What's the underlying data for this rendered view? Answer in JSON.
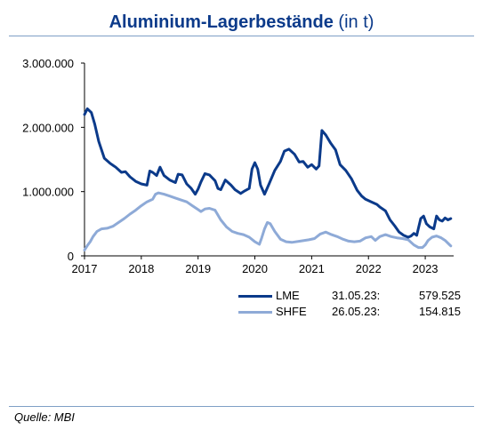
{
  "chart_data": {
    "type": "line",
    "title": "Aluminium-Lagerbestände",
    "title_unit": "(in t)",
    "xlim": [
      2017.0,
      2023.5
    ],
    "ylim": [
      0,
      3000000
    ],
    "yticks": [
      0,
      1000000,
      2000000,
      3000000
    ],
    "ytick_labels": [
      "0",
      "1.000.000",
      "2.000.000",
      "3.000.000"
    ],
    "xticks": [
      2017,
      2018,
      2019,
      2020,
      2021,
      2022,
      2023
    ],
    "xtick_labels": [
      "2017",
      "2018",
      "2019",
      "2020",
      "2021",
      "2022",
      "2023"
    ],
    "grid": false,
    "legend_position": "bottom-right",
    "series": [
      {
        "name": "LME",
        "color": "#0b3a8a",
        "last_date": "31.05.23:",
        "last_value": "579.525",
        "points": [
          [
            2017.0,
            2200000
          ],
          [
            2017.05,
            2290000
          ],
          [
            2017.12,
            2230000
          ],
          [
            2017.18,
            2050000
          ],
          [
            2017.25,
            1780000
          ],
          [
            2017.35,
            1520000
          ],
          [
            2017.45,
            1440000
          ],
          [
            2017.55,
            1380000
          ],
          [
            2017.65,
            1300000
          ],
          [
            2017.72,
            1310000
          ],
          [
            2017.8,
            1230000
          ],
          [
            2017.9,
            1160000
          ],
          [
            2018.0,
            1120000
          ],
          [
            2018.1,
            1100000
          ],
          [
            2018.15,
            1320000
          ],
          [
            2018.2,
            1300000
          ],
          [
            2018.27,
            1250000
          ],
          [
            2018.33,
            1380000
          ],
          [
            2018.4,
            1250000
          ],
          [
            2018.5,
            1180000
          ],
          [
            2018.6,
            1140000
          ],
          [
            2018.65,
            1270000
          ],
          [
            2018.72,
            1260000
          ],
          [
            2018.8,
            1120000
          ],
          [
            2018.88,
            1050000
          ],
          [
            2018.95,
            960000
          ],
          [
            2019.0,
            1040000
          ],
          [
            2019.05,
            1150000
          ],
          [
            2019.12,
            1280000
          ],
          [
            2019.2,
            1260000
          ],
          [
            2019.3,
            1170000
          ],
          [
            2019.35,
            1050000
          ],
          [
            2019.4,
            1030000
          ],
          [
            2019.48,
            1180000
          ],
          [
            2019.58,
            1100000
          ],
          [
            2019.65,
            1030000
          ],
          [
            2019.75,
            970000
          ],
          [
            2019.82,
            1010000
          ],
          [
            2019.9,
            1050000
          ],
          [
            2019.95,
            1350000
          ],
          [
            2020.0,
            1450000
          ],
          [
            2020.05,
            1350000
          ],
          [
            2020.1,
            1100000
          ],
          [
            2020.17,
            960000
          ],
          [
            2020.25,
            1120000
          ],
          [
            2020.35,
            1330000
          ],
          [
            2020.45,
            1470000
          ],
          [
            2020.52,
            1630000
          ],
          [
            2020.6,
            1660000
          ],
          [
            2020.7,
            1580000
          ],
          [
            2020.78,
            1460000
          ],
          [
            2020.85,
            1470000
          ],
          [
            2020.93,
            1380000
          ],
          [
            2021.0,
            1420000
          ],
          [
            2021.08,
            1350000
          ],
          [
            2021.13,
            1400000
          ],
          [
            2021.18,
            1950000
          ],
          [
            2021.25,
            1880000
          ],
          [
            2021.33,
            1760000
          ],
          [
            2021.42,
            1650000
          ],
          [
            2021.5,
            1420000
          ],
          [
            2021.6,
            1330000
          ],
          [
            2021.7,
            1200000
          ],
          [
            2021.8,
            1020000
          ],
          [
            2021.88,
            930000
          ],
          [
            2021.95,
            880000
          ],
          [
            2022.05,
            840000
          ],
          [
            2022.15,
            800000
          ],
          [
            2022.2,
            760000
          ],
          [
            2022.3,
            700000
          ],
          [
            2022.38,
            560000
          ],
          [
            2022.46,
            470000
          ],
          [
            2022.54,
            370000
          ],
          [
            2022.62,
            320000
          ],
          [
            2022.7,
            290000
          ],
          [
            2022.75,
            310000
          ],
          [
            2022.8,
            350000
          ],
          [
            2022.85,
            320000
          ],
          [
            2022.92,
            580000
          ],
          [
            2022.97,
            620000
          ],
          [
            2023.02,
            500000
          ],
          [
            2023.08,
            450000
          ],
          [
            2023.15,
            420000
          ],
          [
            2023.2,
            620000
          ],
          [
            2023.25,
            560000
          ],
          [
            2023.3,
            540000
          ],
          [
            2023.35,
            590000
          ],
          [
            2023.4,
            560000
          ],
          [
            2023.45,
            580000
          ]
        ]
      },
      {
        "name": "SHFE",
        "color": "#8eaad7",
        "last_date": "26.05.23:",
        "last_value": "154.815",
        "points": [
          [
            2017.0,
            90000
          ],
          [
            2017.05,
            160000
          ],
          [
            2017.1,
            220000
          ],
          [
            2017.15,
            300000
          ],
          [
            2017.22,
            380000
          ],
          [
            2017.3,
            420000
          ],
          [
            2017.4,
            430000
          ],
          [
            2017.5,
            460000
          ],
          [
            2017.6,
            520000
          ],
          [
            2017.7,
            580000
          ],
          [
            2017.8,
            650000
          ],
          [
            2017.9,
            710000
          ],
          [
            2018.0,
            780000
          ],
          [
            2018.1,
            840000
          ],
          [
            2018.2,
            880000
          ],
          [
            2018.25,
            960000
          ],
          [
            2018.3,
            980000
          ],
          [
            2018.4,
            960000
          ],
          [
            2018.5,
            930000
          ],
          [
            2018.6,
            900000
          ],
          [
            2018.7,
            870000
          ],
          [
            2018.8,
            840000
          ],
          [
            2018.9,
            780000
          ],
          [
            2019.0,
            720000
          ],
          [
            2019.05,
            690000
          ],
          [
            2019.12,
            730000
          ],
          [
            2019.2,
            740000
          ],
          [
            2019.3,
            710000
          ],
          [
            2019.4,
            560000
          ],
          [
            2019.5,
            450000
          ],
          [
            2019.6,
            380000
          ],
          [
            2019.7,
            350000
          ],
          [
            2019.8,
            330000
          ],
          [
            2019.9,
            290000
          ],
          [
            2020.0,
            220000
          ],
          [
            2020.08,
            180000
          ],
          [
            2020.12,
            280000
          ],
          [
            2020.17,
            420000
          ],
          [
            2020.22,
            520000
          ],
          [
            2020.27,
            500000
          ],
          [
            2020.35,
            380000
          ],
          [
            2020.45,
            260000
          ],
          [
            2020.55,
            220000
          ],
          [
            2020.65,
            210000
          ],
          [
            2020.8,
            230000
          ],
          [
            2020.95,
            250000
          ],
          [
            2021.05,
            270000
          ],
          [
            2021.15,
            340000
          ],
          [
            2021.25,
            370000
          ],
          [
            2021.35,
            330000
          ],
          [
            2021.45,
            300000
          ],
          [
            2021.55,
            260000
          ],
          [
            2021.65,
            230000
          ],
          [
            2021.75,
            220000
          ],
          [
            2021.85,
            230000
          ],
          [
            2021.95,
            280000
          ],
          [
            2022.05,
            300000
          ],
          [
            2022.12,
            240000
          ],
          [
            2022.2,
            300000
          ],
          [
            2022.3,
            330000
          ],
          [
            2022.4,
            300000
          ],
          [
            2022.5,
            280000
          ],
          [
            2022.6,
            270000
          ],
          [
            2022.7,
            250000
          ],
          [
            2022.8,
            170000
          ],
          [
            2022.88,
            130000
          ],
          [
            2022.95,
            130000
          ],
          [
            2023.0,
            170000
          ],
          [
            2023.05,
            240000
          ],
          [
            2023.12,
            290000
          ],
          [
            2023.2,
            310000
          ],
          [
            2023.28,
            280000
          ],
          [
            2023.35,
            240000
          ],
          [
            2023.42,
            180000
          ],
          [
            2023.45,
            155000
          ]
        ]
      }
    ]
  },
  "source": "Quelle: MBI"
}
